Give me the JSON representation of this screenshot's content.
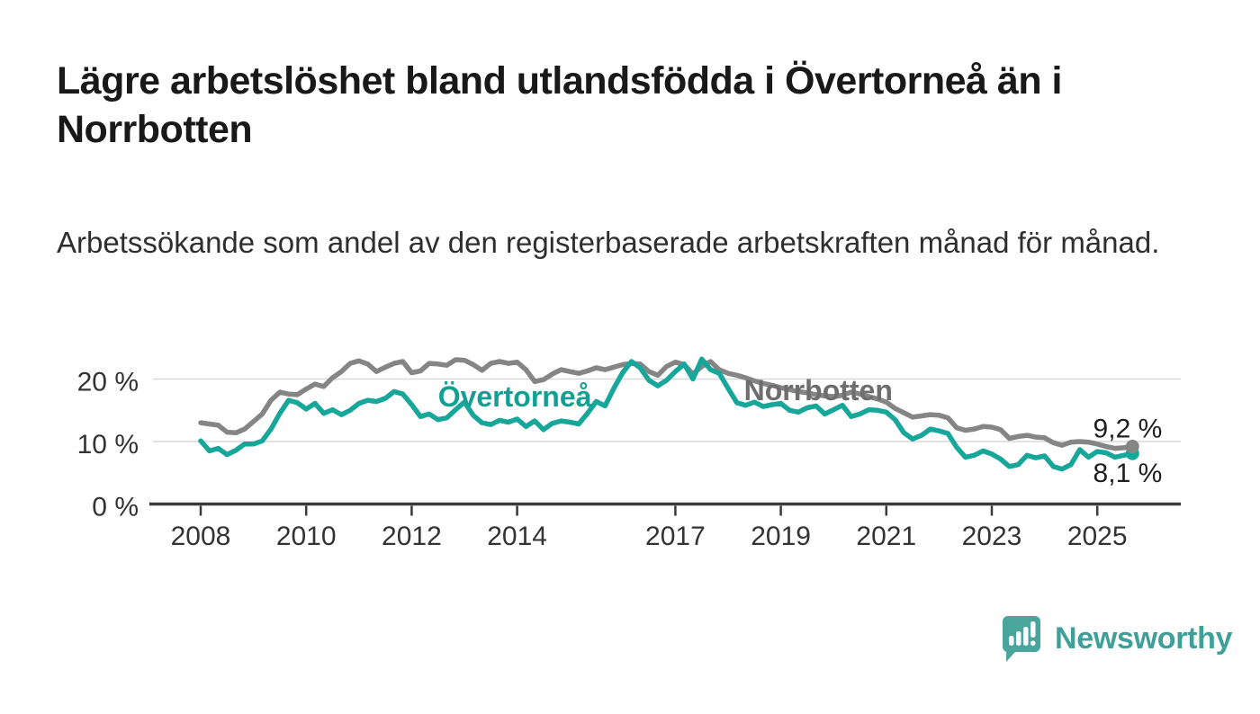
{
  "title": "Lägre arbetslöshet bland utlandsfödda i Övertorneå än i Norrbotten",
  "subtitle": "Arbetssökande som andel av den registerbaserade arbetskraften månad för månad.",
  "branding": {
    "name": "Newsworthy",
    "logo_icon": "speech-bubble-bar-chart-icon",
    "logo_color": "#4aa69c",
    "wordmark_color": "#3fa099"
  },
  "chart_data": {
    "type": "line",
    "x_unit": "year (monthly series shown, ~2-month resolution)",
    "x_start": 2008,
    "x_step": 0.166667,
    "xlim": [
      2007.0,
      2026.6
    ],
    "ylim": [
      0,
      24.5
    ],
    "grid": "horizontal",
    "x_ticks": [
      2008,
      2010,
      2012,
      2014,
      2017,
      2019,
      2021,
      2023,
      2025
    ],
    "x_tick_labels": [
      "2008",
      "2010",
      "2012",
      "2014",
      "2017",
      "2019",
      "2021",
      "2023",
      "2025"
    ],
    "y_ticks": [
      0,
      10,
      20
    ],
    "y_tick_labels": [
      "0 %",
      "10 %",
      "20 %"
    ],
    "axis_color": "#3a3a3a",
    "grid_color": "#d9d9d9",
    "tick_text_color": "#333333",
    "value_label_color": "#1f1f1f",
    "series": [
      {
        "name": "Norrbotten",
        "color": "#858585",
        "label_color": "#6e6e6e",
        "label_x": 2018.3,
        "label_y": 16.6,
        "end_label": "9,2 %",
        "end_value": 9.2,
        "end_label_position": "above",
        "values": [
          13.0,
          12.8,
          12.6,
          11.5,
          11.4,
          12.0,
          13.2,
          14.4,
          16.6,
          17.9,
          17.6,
          17.5,
          18.4,
          19.2,
          18.8,
          20.2,
          21.2,
          22.5,
          22.9,
          22.4,
          21.2,
          21.9,
          22.5,
          22.8,
          21.0,
          21.3,
          22.5,
          22.4,
          22.2,
          23.1,
          23.0,
          22.3,
          21.4,
          22.5,
          22.8,
          22.5,
          22.7,
          21.5,
          19.6,
          19.9,
          20.8,
          21.5,
          21.2,
          20.9,
          21.3,
          21.8,
          21.5,
          21.9,
          22.3,
          22.5,
          22.4,
          21.2,
          20.6,
          22.0,
          22.7,
          22.3,
          20.8,
          22.0,
          22.8,
          21.5,
          20.9,
          20.6,
          20.2,
          19.7,
          19.3,
          19.0,
          18.6,
          18.3,
          18.0,
          17.8,
          17.5,
          17.3,
          17.2,
          17.4,
          17.9,
          17.6,
          17.2,
          16.8,
          16.3,
          15.3,
          14.6,
          13.9,
          14.1,
          14.3,
          14.2,
          13.8,
          12.2,
          11.8,
          12.0,
          12.4,
          12.3,
          11.9,
          10.5,
          10.8,
          11.0,
          10.7,
          10.6,
          9.8,
          9.4,
          9.9,
          10.0,
          9.9,
          9.6,
          9.2,
          8.9,
          9.0,
          9.2
        ]
      },
      {
        "name": "Övertorneå",
        "color": "#17a69a",
        "label_color": "#12a094",
        "label_x": 2012.5,
        "label_y": 15.6,
        "end_label": "8,1 %",
        "end_value": 8.1,
        "end_label_position": "below",
        "values": [
          10.1,
          8.5,
          8.9,
          7.9,
          8.6,
          9.6,
          9.6,
          10.1,
          12.0,
          14.5,
          16.6,
          16.2,
          15.2,
          16.1,
          14.5,
          15.1,
          14.3,
          15.0,
          16.1,
          16.6,
          16.4,
          16.9,
          18.0,
          17.6,
          15.9,
          14.0,
          14.4,
          13.5,
          13.8,
          15.1,
          16.3,
          14.2,
          13.0,
          12.7,
          13.4,
          13.1,
          13.6,
          12.4,
          13.3,
          11.9,
          12.9,
          13.3,
          13.1,
          12.8,
          14.5,
          16.4,
          15.7,
          18.5,
          21.0,
          22.8,
          21.8,
          19.8,
          18.9,
          19.8,
          21.2,
          22.4,
          20.0,
          23.2,
          21.5,
          20.9,
          18.5,
          16.2,
          15.8,
          16.3,
          15.6,
          15.9,
          16.1,
          15.0,
          14.7,
          15.4,
          15.7,
          14.4,
          15.1,
          15.8,
          14.0,
          14.4,
          15.1,
          15.0,
          14.7,
          13.5,
          11.4,
          10.4,
          11.0,
          12.0,
          11.7,
          11.3,
          9.1,
          7.5,
          7.8,
          8.5,
          8.0,
          7.2,
          6.0,
          6.3,
          7.8,
          7.4,
          7.7,
          6.0,
          5.6,
          6.3,
          8.7,
          7.5,
          8.4,
          8.2,
          7.5,
          7.8,
          8.1
        ]
      }
    ]
  }
}
